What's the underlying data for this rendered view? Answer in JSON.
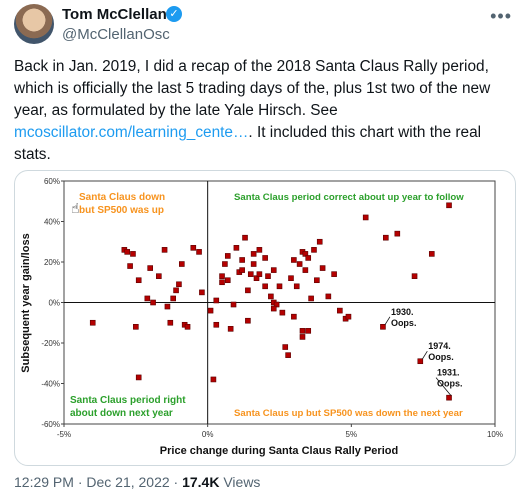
{
  "author": {
    "name": "Tom McClellan",
    "handle": "@McClellanOsc"
  },
  "tweet": {
    "text_1": "Back in Jan. 2019, I did a recap of the 2018 Santa Claus Rally period, which is officially the last 5 trading days of the, plus 1st two of the new year, as formulated by the late Yale Hirsch. See ",
    "link": "mcoscillator.com/learning_cente…",
    "text_2": ". It included this chart with the real stats."
  },
  "meta": {
    "time": "12:29 PM · Dec 21, 2022 · ",
    "views_count": "17.4K",
    "views_label": " Views"
  },
  "colors": {
    "orange": "#f7931e",
    "green": "#2ca02c",
    "marker": "#b40000"
  },
  "chart_data": {
    "type": "scatter",
    "xlabel": "Price change during Santa Claus Rally Period",
    "ylabel": "Subsequent year gain/loss",
    "xlim": [
      -5,
      10
    ],
    "ylim": [
      -60,
      60
    ],
    "x_ticks": [
      "-5%",
      "0%",
      "5%",
      "10%"
    ],
    "y_ticks": [
      "60%",
      "40%",
      "20%",
      "0%",
      "-20%",
      "-40%",
      "-60%"
    ],
    "quadrant_labels": {
      "top_left": [
        "Santa Claus down",
        "but SP500 was up"
      ],
      "top_right": "Santa Claus period correct about up year to follow",
      "bottom_left": [
        "Santa Claus period right",
        "about down next year"
      ],
      "bottom_right": "Santa Claus up but SP500 was down the next year"
    },
    "annotations": [
      {
        "lines": [
          "1930.",
          "Oops."
        ],
        "x": 6.1,
        "y": -12
      },
      {
        "lines": [
          "1974.",
          "Oops."
        ],
        "x": 7.4,
        "y": -29
      },
      {
        "lines": [
          "1931.",
          "Oops."
        ],
        "x": 8.4,
        "y": -47
      }
    ],
    "points": [
      [
        -4,
        -10
      ],
      [
        -2.9,
        26
      ],
      [
        -2.8,
        25
      ],
      [
        -2.7,
        18
      ],
      [
        -2.6,
        24
      ],
      [
        -2.4,
        11
      ],
      [
        -2.1,
        2
      ],
      [
        -2.0,
        17
      ],
      [
        -1.7,
        13
      ],
      [
        -1.5,
        26
      ],
      [
        -1.4,
        -2
      ],
      [
        -1.3,
        -10
      ],
      [
        -1.2,
        2
      ],
      [
        -1.1,
        6
      ],
      [
        -1.0,
        9
      ],
      [
        -0.9,
        19
      ],
      [
        -0.8,
        -11
      ],
      [
        -0.7,
        -12
      ],
      [
        -0.5,
        27
      ],
      [
        -0.3,
        25
      ],
      [
        -0.2,
        5
      ],
      [
        -1.9,
        0
      ],
      [
        -2.4,
        -37
      ],
      [
        -2.5,
        -12
      ],
      [
        0.1,
        -4
      ],
      [
        0.3,
        1
      ],
      [
        0.3,
        -11
      ],
      [
        0.5,
        13
      ],
      [
        0.5,
        10
      ],
      [
        0.6,
        19
      ],
      [
        0.7,
        23
      ],
      [
        0.7,
        11
      ],
      [
        0.8,
        -13
      ],
      [
        0.9,
        -1
      ],
      [
        1.0,
        27
      ],
      [
        1.1,
        15
      ],
      [
        1.2,
        21
      ],
      [
        1.2,
        16
      ],
      [
        1.3,
        32
      ],
      [
        1.4,
        6
      ],
      [
        1.5,
        14
      ],
      [
        1.6,
        24
      ],
      [
        1.6,
        19
      ],
      [
        1.7,
        12
      ],
      [
        1.8,
        14
      ],
      [
        1.8,
        26
      ],
      [
        2.0,
        8
      ],
      [
        2.0,
        22
      ],
      [
        2.1,
        13
      ],
      [
        2.2,
        3
      ],
      [
        2.3,
        16
      ],
      [
        2.3,
        0
      ],
      [
        2.4,
        -1
      ],
      [
        2.5,
        8
      ],
      [
        2.6,
        -5
      ],
      [
        2.7,
        -22
      ],
      [
        2.8,
        -26
      ],
      [
        2.9,
        12
      ],
      [
        3.0,
        21
      ],
      [
        3.1,
        8
      ],
      [
        3.2,
        19
      ],
      [
        3.3,
        25
      ],
      [
        3.4,
        24
      ],
      [
        3.4,
        16
      ],
      [
        3.5,
        22
      ],
      [
        3.6,
        2
      ],
      [
        3.7,
        26
      ],
      [
        3.8,
        11
      ],
      [
        3.9,
        30
      ],
      [
        4.0,
        17
      ],
      [
        4.2,
        3
      ],
      [
        4.4,
        14
      ],
      [
        4.6,
        -4
      ],
      [
        4.8,
        -8
      ],
      [
        4.9,
        -7
      ],
      [
        3.3,
        -14
      ],
      [
        3.3,
        -17
      ],
      [
        3.5,
        -14
      ],
      [
        3.0,
        -7
      ],
      [
        2.3,
        -3
      ],
      [
        1.4,
        -9
      ],
      [
        0.2,
        -38
      ],
      [
        5.5,
        42
      ],
      [
        6.2,
        32
      ],
      [
        6.6,
        34
      ],
      [
        7.2,
        13
      ],
      [
        7.8,
        24
      ],
      [
        6.1,
        -12
      ],
      [
        7.4,
        -29
      ],
      [
        8.4,
        -47
      ],
      [
        8.4,
        48
      ]
    ]
  }
}
